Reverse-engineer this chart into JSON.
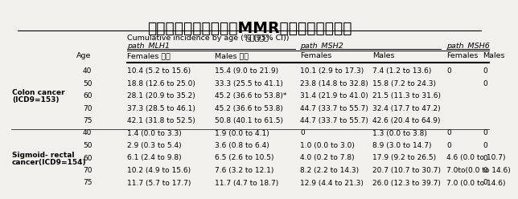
{
  "title": "大腸直腸癌之不同性別MMR基因變異的發生率",
  "subtitle_en": "Cumulative incidence by age (% (95% CI))",
  "subtitle_zh": "累積發生率",
  "path_labels": [
    "path_MLH1",
    "path_MSH2",
    "path_MSH6"
  ],
  "col_headers": [
    "",
    "Age",
    "Females 女性",
    "Males 男性",
    "Females",
    "Males",
    "Females",
    "Males"
  ],
  "row_groups": [
    {
      "label_line1": "Colon cancer",
      "label_line2": "(ICD9=153)",
      "rows": [
        [
          "40",
          "10.4 (5.2 to 15.6)",
          "15.4 (9.0 to 21.9)",
          "10.1 (2.9 to 17.3)",
          "7.4 (1.2 to 13.6)",
          "0",
          "0"
        ],
        [
          "50",
          "18.8 (12.6 to 25.0)",
          "33.3 (25.5 to 41.1)",
          "23.8 (14.8 to 32.8)",
          "15.8 (7.2 to 24.3)",
          "",
          "0"
        ],
        [
          "60",
          "28.1 (20.9 to 35.2)",
          "45.2 (36.6 to 53.8)*",
          "31.4 (21.9 to 41.0)",
          "21.5 (11.3 to 31.6)",
          "",
          ""
        ],
        [
          "70",
          "37.3 (28.5 to 46.1)",
          "45.2 (36.6 to 53.8)",
          "44.7 (33.7 to 55.7)",
          "32.4 (17.7 to 47.2)",
          "",
          ""
        ],
        [
          "75",
          "42.1 (31.8 to 52.5)",
          "50.8 (40.1 to 61.5)",
          "44.7 (33.7 to 55.7)",
          "42.6 (20.4 to 64.9)",
          "",
          ""
        ]
      ]
    },
    {
      "label_line1": "Sigmoid- rectal",
      "label_line2": "cancer(ICD9=154)",
      "rows": [
        [
          "40",
          "1.4 (0.0 to 3.3)",
          "1.9 (0.0 to 4.1)",
          "0",
          "1.3 (0.0 to 3.8)",
          "0",
          "0"
        ],
        [
          "50",
          "2.9 (0.3 to 5.4)",
          "3.6 (0.8 to 6.4)",
          "1.0 (0.0 to 3.0)",
          "8.9 (3.0 to 14.7)",
          "0",
          "0"
        ],
        [
          "60",
          "6.1 (2.4 to 9.8)",
          "6.5 (2.6 to 10.5)",
          "4.0 (0.2 to 7.8)",
          "17.9 (9.2 to 26.5)",
          "4.6 (0.0 to 10.7)",
          "0"
        ],
        [
          "70",
          "10.2 (4.9 to 15.6)",
          "7.6 (3.2 to 12.1)",
          "8.2 (2.2 to 14.3)",
          "20.7 (10.7 to 30.7)",
          "7.0to(0.0 to 14.6)",
          "0"
        ],
        [
          "75",
          "11.7 (5.7 to 17.7)",
          "11.7 (4.7 to 18.7)",
          "12.9 (4.4 to 21.3)",
          "26.0 (12.3 to 39.7)",
          "7.0 (0.0 to 14.6)",
          "0"
        ]
      ]
    }
  ],
  "bg_color": "#f2f0ed",
  "title_fontsize": 13.5,
  "subtitle_fontsize": 6.8,
  "header1_fontsize": 6.8,
  "header2_fontsize": 6.8,
  "cell_fontsize": 6.5,
  "label_fontsize": 6.5
}
